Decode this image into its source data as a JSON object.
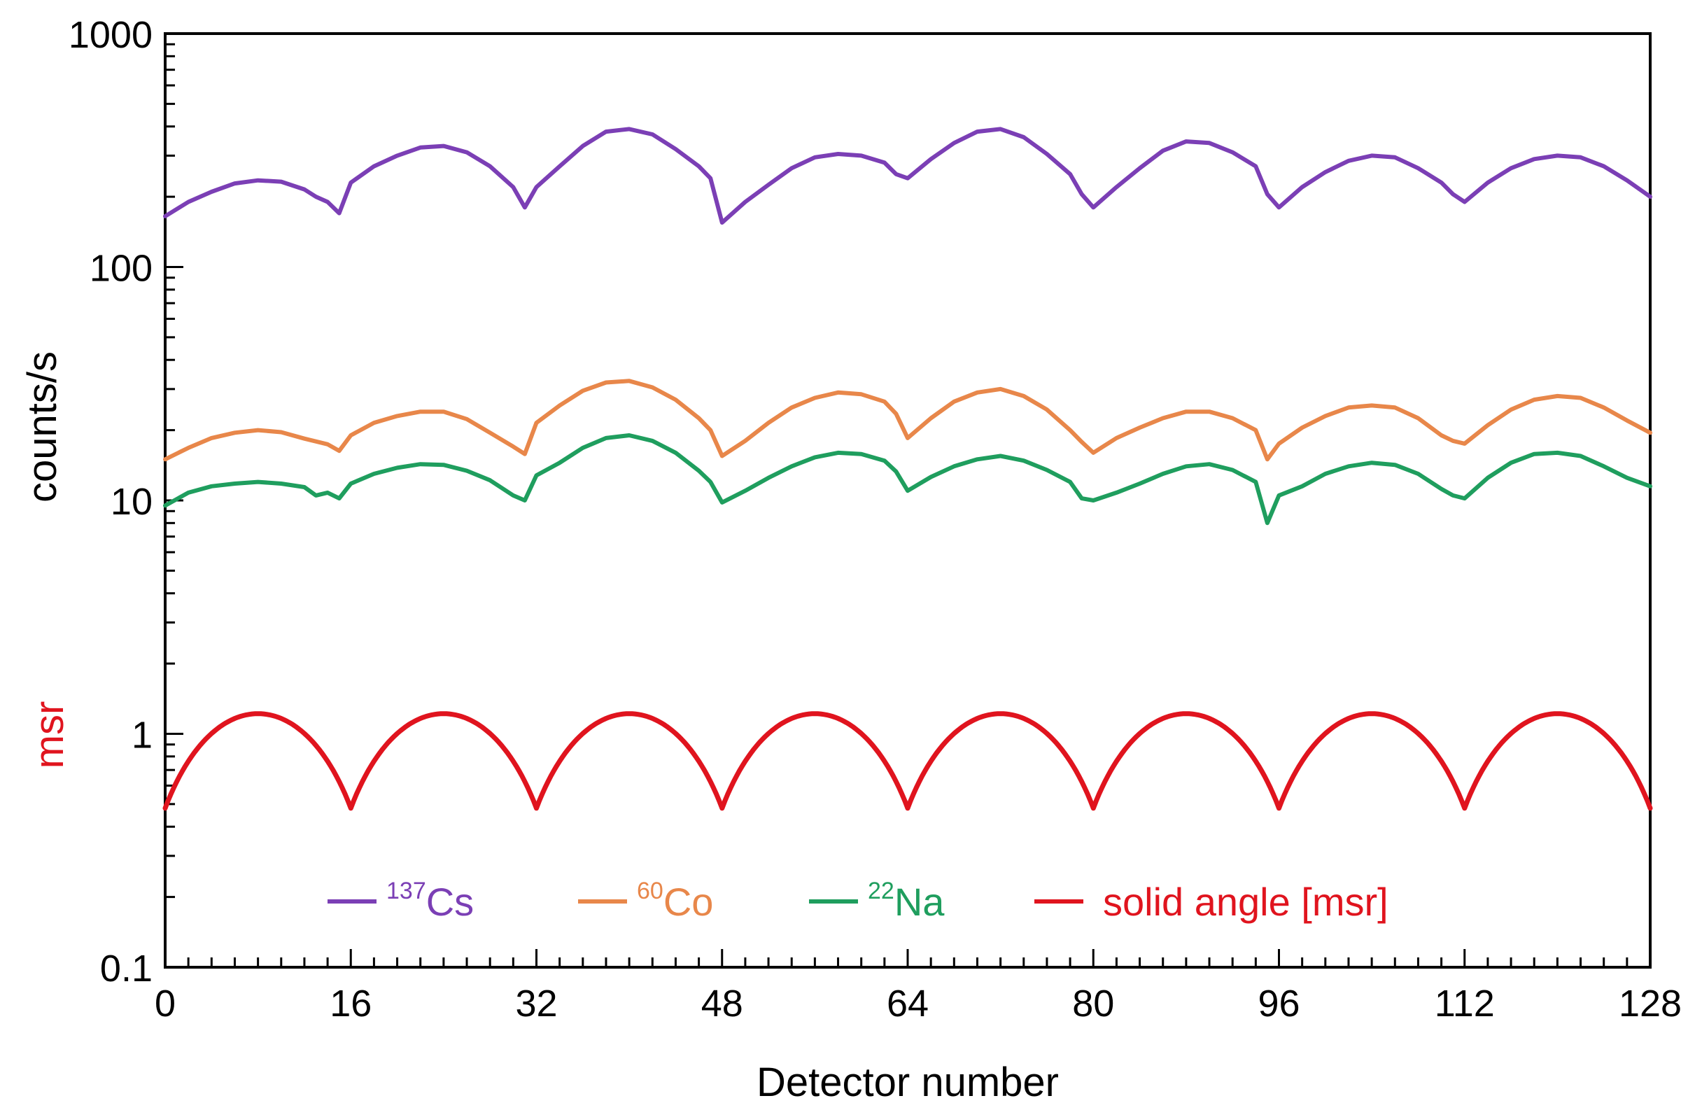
{
  "chart_data": {
    "type": "line",
    "title": "",
    "xlabel": "Detector number",
    "ylabel": "counts/s",
    "ylabel_secondary": "msr",
    "yscale": "log",
    "xlim": [
      0,
      128
    ],
    "ylim": [
      0.1,
      1000
    ],
    "x_ticks": [
      "0",
      "16",
      "32",
      "48",
      "64",
      "80",
      "96",
      "112",
      "128"
    ],
    "y_ticks": [
      "0.1",
      "1",
      "10",
      "100",
      "1000"
    ],
    "grid": false,
    "legend_position": "bottom",
    "series": [
      {
        "name": "Cs",
        "isotope_mass": "137",
        "color": "#7b3fb5",
        "points": [
          [
            0,
            165
          ],
          [
            2,
            190
          ],
          [
            4,
            210
          ],
          [
            6,
            228
          ],
          [
            8,
            235
          ],
          [
            10,
            232
          ],
          [
            12,
            215
          ],
          [
            13,
            200
          ],
          [
            14,
            190
          ],
          [
            15,
            170
          ],
          [
            16,
            230
          ],
          [
            18,
            270
          ],
          [
            20,
            300
          ],
          [
            22,
            325
          ],
          [
            24,
            330
          ],
          [
            26,
            310
          ],
          [
            28,
            270
          ],
          [
            30,
            220
          ],
          [
            31,
            180
          ],
          [
            32,
            220
          ],
          [
            34,
            270
          ],
          [
            36,
            330
          ],
          [
            38,
            380
          ],
          [
            40,
            390
          ],
          [
            42,
            370
          ],
          [
            44,
            320
          ],
          [
            46,
            270
          ],
          [
            47,
            240
          ],
          [
            48,
            155
          ],
          [
            50,
            190
          ],
          [
            52,
            225
          ],
          [
            54,
            265
          ],
          [
            56,
            295
          ],
          [
            58,
            305
          ],
          [
            60,
            300
          ],
          [
            62,
            280
          ],
          [
            63,
            250
          ],
          [
            64,
            240
          ],
          [
            66,
            290
          ],
          [
            68,
            340
          ],
          [
            70,
            380
          ],
          [
            72,
            390
          ],
          [
            74,
            360
          ],
          [
            76,
            305
          ],
          [
            78,
            250
          ],
          [
            79,
            205
          ],
          [
            80,
            180
          ],
          [
            82,
            220
          ],
          [
            84,
            265
          ],
          [
            86,
            315
          ],
          [
            88,
            345
          ],
          [
            90,
            340
          ],
          [
            92,
            310
          ],
          [
            94,
            270
          ],
          [
            95,
            205
          ],
          [
            96,
            180
          ],
          [
            98,
            220
          ],
          [
            100,
            255
          ],
          [
            102,
            285
          ],
          [
            104,
            300
          ],
          [
            106,
            295
          ],
          [
            108,
            265
          ],
          [
            110,
            230
          ],
          [
            111,
            205
          ],
          [
            112,
            190
          ],
          [
            114,
            230
          ],
          [
            116,
            265
          ],
          [
            118,
            290
          ],
          [
            120,
            300
          ],
          [
            122,
            295
          ],
          [
            124,
            270
          ],
          [
            126,
            235
          ],
          [
            128,
            200
          ]
        ]
      },
      {
        "name": "Co",
        "isotope_mass": "60",
        "color": "#e8874a",
        "points": [
          [
            0,
            15
          ],
          [
            2,
            16.8
          ],
          [
            4,
            18.5
          ],
          [
            6,
            19.5
          ],
          [
            8,
            20
          ],
          [
            10,
            19.6
          ],
          [
            12,
            18.4
          ],
          [
            14,
            17.4
          ],
          [
            15,
            16.3
          ],
          [
            16,
            19
          ],
          [
            18,
            21.5
          ],
          [
            20,
            23
          ],
          [
            22,
            24
          ],
          [
            24,
            24
          ],
          [
            26,
            22.3
          ],
          [
            28,
            19.5
          ],
          [
            30,
            17
          ],
          [
            31,
            15.8
          ],
          [
            32,
            21.5
          ],
          [
            34,
            25.5
          ],
          [
            36,
            29.5
          ],
          [
            38,
            32
          ],
          [
            40,
            32.5
          ],
          [
            42,
            30.5
          ],
          [
            44,
            27
          ],
          [
            46,
            22.5
          ],
          [
            47,
            20
          ],
          [
            48,
            15.5
          ],
          [
            50,
            18
          ],
          [
            52,
            21.5
          ],
          [
            54,
            25
          ],
          [
            56,
            27.5
          ],
          [
            58,
            29
          ],
          [
            60,
            28.5
          ],
          [
            62,
            26.5
          ],
          [
            63,
            23.5
          ],
          [
            64,
            18.5
          ],
          [
            66,
            22.5
          ],
          [
            68,
            26.5
          ],
          [
            70,
            29
          ],
          [
            72,
            30
          ],
          [
            74,
            28
          ],
          [
            76,
            24.5
          ],
          [
            78,
            20
          ],
          [
            79,
            17.8
          ],
          [
            80,
            16
          ],
          [
            82,
            18.5
          ],
          [
            84,
            20.5
          ],
          [
            86,
            22.5
          ],
          [
            88,
            24
          ],
          [
            90,
            24
          ],
          [
            92,
            22.5
          ],
          [
            94,
            20
          ],
          [
            95,
            15
          ],
          [
            96,
            17.5
          ],
          [
            98,
            20.5
          ],
          [
            100,
            23
          ],
          [
            102,
            25
          ],
          [
            104,
            25.5
          ],
          [
            106,
            25
          ],
          [
            108,
            22.5
          ],
          [
            110,
            19
          ],
          [
            111,
            18
          ],
          [
            112,
            17.5
          ],
          [
            114,
            21
          ],
          [
            116,
            24.5
          ],
          [
            118,
            27
          ],
          [
            120,
            28
          ],
          [
            122,
            27.5
          ],
          [
            124,
            25
          ],
          [
            126,
            22
          ],
          [
            128,
            19.5
          ]
        ]
      },
      {
        "name": "Na",
        "isotope_mass": "22",
        "color": "#1f9e5e",
        "points": [
          [
            0,
            9.5
          ],
          [
            2,
            10.8
          ],
          [
            4,
            11.5
          ],
          [
            6,
            11.8
          ],
          [
            8,
            12
          ],
          [
            10,
            11.8
          ],
          [
            12,
            11.4
          ],
          [
            13,
            10.5
          ],
          [
            14,
            10.8
          ],
          [
            15,
            10.2
          ],
          [
            16,
            11.8
          ],
          [
            18,
            13
          ],
          [
            20,
            13.8
          ],
          [
            22,
            14.3
          ],
          [
            24,
            14.2
          ],
          [
            26,
            13.4
          ],
          [
            28,
            12.2
          ],
          [
            30,
            10.5
          ],
          [
            31,
            10
          ],
          [
            32,
            12.8
          ],
          [
            34,
            14.5
          ],
          [
            36,
            16.8
          ],
          [
            38,
            18.5
          ],
          [
            40,
            19
          ],
          [
            42,
            18
          ],
          [
            44,
            16
          ],
          [
            46,
            13.4
          ],
          [
            47,
            12
          ],
          [
            48,
            9.8
          ],
          [
            50,
            11
          ],
          [
            52,
            12.5
          ],
          [
            54,
            14
          ],
          [
            56,
            15.3
          ],
          [
            58,
            16
          ],
          [
            60,
            15.8
          ],
          [
            62,
            14.8
          ],
          [
            63,
            13.3
          ],
          [
            64,
            11
          ],
          [
            66,
            12.6
          ],
          [
            68,
            14
          ],
          [
            70,
            15
          ],
          [
            72,
            15.5
          ],
          [
            74,
            14.8
          ],
          [
            76,
            13.5
          ],
          [
            78,
            12
          ],
          [
            79,
            10.2
          ],
          [
            80,
            10
          ],
          [
            82,
            10.8
          ],
          [
            84,
            11.8
          ],
          [
            86,
            13
          ],
          [
            88,
            14
          ],
          [
            90,
            14.3
          ],
          [
            92,
            13.5
          ],
          [
            94,
            12
          ],
          [
            95,
            8
          ],
          [
            96,
            10.5
          ],
          [
            98,
            11.5
          ],
          [
            100,
            13
          ],
          [
            102,
            14
          ],
          [
            104,
            14.5
          ],
          [
            106,
            14.2
          ],
          [
            108,
            13
          ],
          [
            110,
            11.2
          ],
          [
            111,
            10.5
          ],
          [
            112,
            10.2
          ],
          [
            114,
            12.5
          ],
          [
            116,
            14.5
          ],
          [
            118,
            15.8
          ],
          [
            120,
            16
          ],
          [
            122,
            15.5
          ],
          [
            124,
            14
          ],
          [
            126,
            12.5
          ],
          [
            128,
            11.5
          ]
        ]
      },
      {
        "name": "solid angle [msr]",
        "color": "#e0141e",
        "period": 16,
        "min": 0.48,
        "max": 1.22
      }
    ]
  }
}
